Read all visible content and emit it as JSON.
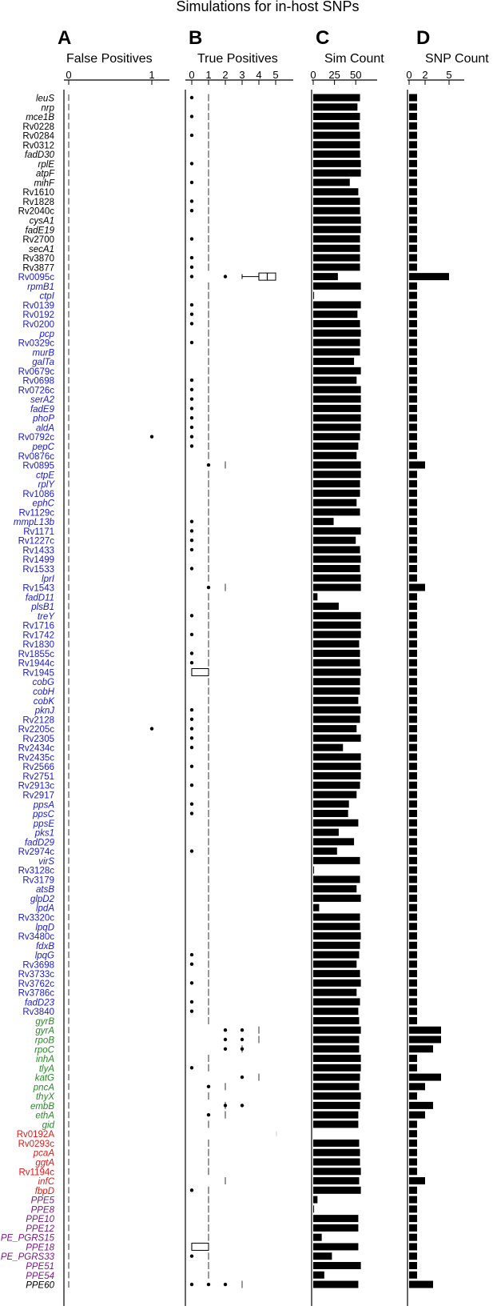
{
  "title": "Simulations for in-host SNPs",
  "panels": [
    {
      "letter": "A",
      "title": "False Positives"
    },
    {
      "letter": "B",
      "title": "True Positives"
    },
    {
      "letter": "C",
      "title": "Sim Count"
    },
    {
      "letter": "D",
      "title": "SNP Count"
    }
  ],
  "colors": {
    "black": "#000000",
    "blue": "#1a1acc",
    "green": "#2a8a2a",
    "red": "#dd1a1a",
    "purple": "#7a1a8a"
  },
  "chart_data": [
    {
      "type": "scatter",
      "title": "False Positives",
      "xticks": [
        "0",
        "1"
      ],
      "xlim": [
        0,
        1
      ],
      "dashed_reference_x": 0,
      "categories": [
        "leuS",
        "nrp",
        "mce1B",
        "Rv0228",
        "Rv0284",
        "Rv0312",
        "fadD30",
        "rplE",
        "atpF",
        "mihF",
        "Rv1610",
        "Rv1828",
        "Rv2040c",
        "cysA1",
        "fadE19",
        "Rv2700",
        "secA1",
        "Rv3870",
        "Rv3877",
        "Rv0095c",
        "rpmB1",
        "ctpI",
        "Rv0139",
        "Rv0192",
        "Rv0200",
        "pcp",
        "Rv0329c",
        "murB",
        "galTa",
        "Rv0679c",
        "Rv0698",
        "Rv0726c",
        "serA2",
        "fadE9",
        "phoP",
        "aldA",
        "Rv0792c",
        "pepC",
        "Rv0876c",
        "Rv0895",
        "ctpE",
        "rplY",
        "Rv1086",
        "ephC",
        "Rv1129c",
        "mmpL13b",
        "Rv1171",
        "Rv1227c",
        "Rv1433",
        "Rv1499",
        "Rv1533",
        "lprI",
        "Rv1543",
        "fadD11",
        "plsB1",
        "treY",
        "Rv1716",
        "Rv1742",
        "Rv1830",
        "Rv1855c",
        "Rv1944c",
        "Rv1945",
        "cobG",
        "cobH",
        "cobK",
        "pknJ",
        "Rv2128",
        "Rv2205c",
        "Rv2305",
        "Rv2434c",
        "Rv2435c",
        "Rv2566",
        "Rv2751",
        "Rv2913c",
        "Rv2917",
        "ppsA",
        "ppsC",
        "ppsE",
        "pks1",
        "fadD29",
        "Rv2974c",
        "virS",
        "Rv3128c",
        "Rv3179",
        "atsB",
        "glpD2",
        "lpdA",
        "Rv3320c",
        "lpqD",
        "Rv3480c",
        "fdxB",
        "lpqG",
        "Rv3698",
        "Rv3733c",
        "Rv3762c",
        "Rv3786c",
        "fadD23",
        "Rv3840",
        "gyrB",
        "gyrA",
        "rpoB",
        "rpoC",
        "inhA",
        "tlyA",
        "katG",
        "pncA",
        "thyX",
        "embB",
        "ethA",
        "gid",
        "Rv0192A",
        "Rv0293c",
        "pcaA",
        "ggtA",
        "Rv1194c",
        "infC",
        "fbpD",
        "PPE5",
        "PPE8",
        "PPE10",
        "PPE12",
        "PE_PGRS15",
        "PPE18",
        "PE_PGRS33",
        "PPE51",
        "PPE54",
        "PPE60"
      ],
      "category_groups": {
        "black": [
          0,
          18
        ],
        "blue": [
          19,
          97
        ],
        "green": [
          98,
          109
        ],
        "red": [
          110,
          116
        ],
        "purple": [
          117,
          125
        ]
      },
      "italic_labels": [
        "leuS",
        "nrp",
        "mce1B",
        "fadD30",
        "rplE",
        "atpF",
        "mihF",
        "cysA1",
        "fadE19",
        "secA1",
        "rpmB1",
        "ctpI",
        "pcp",
        "murB",
        "galTa",
        "serA2",
        "fadE9",
        "phoP",
        "aldA",
        "pepC",
        "ctpE",
        "rplY",
        "ephC",
        "mmpL13b",
        "lprI",
        "fadD11",
        "plsB1",
        "treY",
        "cobG",
        "cobH",
        "cobK",
        "pknJ",
        "ppsA",
        "ppsC",
        "ppsE",
        "pks1",
        "fadD29",
        "virS",
        "atsB",
        "glpD2",
        "lpdA",
        "lpqD",
        "fdxB",
        "lpqG",
        "fadD23",
        "gyrB",
        "gyrA",
        "rpoB",
        "rpoC",
        "inhA",
        "tlyA",
        "katG",
        "pncA",
        "thyX",
        "embB",
        "ethA",
        "gid",
        "pcaA",
        "ggtA",
        "infC",
        "fbpD",
        "PPE5",
        "PPE8",
        "PPE10",
        "PPE12",
        "PE_PGRS15",
        "PPE18",
        "PE_PGRS33",
        "PPE51",
        "PPE54",
        "PPE60"
      ],
      "outlier_points": [
        {
          "category": "Rv0792c",
          "value": 1
        },
        {
          "category": "Rv2205c",
          "value": 1
        }
      ]
    },
    {
      "type": "scatter",
      "title": "True Positives",
      "xticks": [
        "0",
        "1",
        "2",
        "3",
        "4",
        "5"
      ],
      "xlim": [
        0,
        5
      ],
      "median_marks": [
        1,
        1,
        1,
        1,
        1,
        1,
        1,
        1,
        1,
        1,
        1,
        1,
        1,
        1,
        1,
        1,
        1,
        1,
        1,
        4,
        1,
        1,
        1,
        1,
        1,
        1,
        1,
        1,
        1,
        1,
        1,
        1,
        1,
        1,
        1,
        1,
        1,
        1,
        1,
        2,
        1,
        1,
        1,
        1,
        1,
        1,
        1,
        1,
        1,
        1,
        1,
        1,
        2,
        1,
        1,
        1,
        1,
        1,
        1,
        1,
        1,
        0,
        1,
        1,
        1,
        1,
        1,
        1,
        1,
        1,
        1,
        1,
        1,
        1,
        1,
        1,
        1,
        1,
        1,
        1,
        1,
        1,
        1,
        1,
        1,
        1,
        1,
        1,
        1,
        1,
        1,
        1,
        1,
        1,
        1,
        1,
        1,
        1,
        1,
        4,
        4,
        3,
        1,
        1,
        4,
        2,
        1,
        2,
        2,
        1,
        null,
        1,
        1,
        1,
        1,
        2,
        1,
        1,
        1,
        1,
        1,
        1,
        0,
        1,
        1,
        1,
        3
      ],
      "zero_dots": [
        "leuS",
        "mce1B",
        "Rv0284",
        "rplE",
        "mihF",
        "Rv1828",
        "Rv2040c",
        "Rv2700",
        "Rv3870",
        "Rv3877",
        "Rv0095c",
        "Rv0139",
        "Rv0192",
        "Rv0200",
        "Rv0329c",
        "Rv0698",
        "Rv0726c",
        "serA2",
        "fadE9",
        "phoP",
        "aldA",
        "Rv0792c",
        "pepC",
        "mmpL13b",
        "Rv1171",
        "Rv1227c",
        "Rv1433",
        "Rv1533",
        "treY",
        "Rv1742",
        "Rv1855c",
        "Rv1944c",
        "pknJ",
        "Rv2128",
        "Rv2205c",
        "Rv2305",
        "Rv2434c",
        "Rv2566",
        "Rv2913c",
        "ppsA",
        "ppsC",
        "Rv2974c",
        "lpqG",
        "Rv3698",
        "Rv3762c",
        "fadD23",
        "Rv3840",
        "tlyA",
        "fbpD",
        "PE_PGRS33",
        "PPE60"
      ],
      "extra_points": [
        {
          "category": "Rv0095c",
          "value": 2
        },
        {
          "category": "Rv0895",
          "value": 1
        },
        {
          "category": "Rv1543",
          "value": 1
        },
        {
          "category": "gyrA",
          "value": 2
        },
        {
          "category": "gyrA",
          "value": 3
        },
        {
          "category": "rpoB",
          "value": 2
        },
        {
          "category": "rpoB",
          "value": 3
        },
        {
          "category": "rpoC",
          "value": 2
        },
        {
          "category": "rpoC",
          "value": 3
        },
        {
          "category": "katG",
          "value": 3
        },
        {
          "category": "pncA",
          "value": 1
        },
        {
          "category": "embB",
          "value": 2
        },
        {
          "category": "embB",
          "value": 3
        },
        {
          "category": "ethA",
          "value": 1
        },
        {
          "category": "PPE60",
          "value": 1
        },
        {
          "category": "PPE60",
          "value": 2
        }
      ],
      "boxes": [
        {
          "category": "Rv0095c",
          "q1": 4,
          "median": 4.5,
          "q3": 5,
          "whisker_low": 3,
          "whisker_high": 5
        },
        {
          "category": "Rv1945",
          "q1": 0,
          "median": 0,
          "q3": 1,
          "whisker_low": 0,
          "whisker_high": 1
        },
        {
          "category": "PPE18",
          "q1": 0,
          "median": 0,
          "q3": 1,
          "whisker_low": 0,
          "whisker_high": 1
        }
      ]
    },
    {
      "type": "bar",
      "title": "Sim Count",
      "xticks": [
        "0",
        "25",
        "50"
      ],
      "xlim": [
        0,
        62
      ],
      "values": [
        55,
        52,
        55,
        54,
        55,
        55,
        55,
        56,
        56,
        43,
        53,
        55,
        55,
        56,
        56,
        55,
        55,
        55,
        55,
        29,
        56,
        1,
        56,
        52,
        55,
        56,
        55,
        55,
        48,
        56,
        51,
        56,
        56,
        56,
        56,
        56,
        55,
        53,
        51,
        56,
        56,
        55,
        55,
        51,
        55,
        24,
        56,
        50,
        55,
        56,
        55,
        56,
        56,
        5,
        30,
        56,
        56,
        56,
        54,
        55,
        55,
        56,
        55,
        55,
        53,
        56,
        55,
        51,
        56,
        35,
        56,
        56,
        56,
        55,
        51,
        42,
        41,
        53,
        30,
        48,
        28,
        55,
        1,
        55,
        51,
        56,
        7,
        55,
        55,
        56,
        55,
        54,
        51,
        55,
        56,
        51,
        55,
        53,
        54,
        56,
        54,
        54,
        56,
        56,
        55,
        54,
        56,
        55,
        53,
        53,
        null,
        54,
        55,
        55,
        56,
        54,
        56,
        5,
        1,
        53,
        53,
        10,
        53,
        22,
        56,
        13,
        53
      ]
    },
    {
      "type": "bar",
      "title": "SNP Count",
      "xticks": [
        "0",
        "2",
        "5"
      ],
      "xlim": [
        0,
        6
      ],
      "values": [
        1,
        1,
        1,
        1,
        1,
        1,
        1,
        1,
        1,
        1,
        1,
        1,
        1,
        1,
        1,
        1,
        1,
        1,
        1,
        5,
        1,
        1,
        1,
        1,
        1,
        1,
        1,
        1,
        1,
        1,
        1,
        1,
        1,
        1,
        1,
        1,
        1,
        1,
        1,
        2,
        1,
        1,
        1,
        1,
        1,
        1,
        1,
        1,
        1,
        1,
        1,
        1,
        2,
        1,
        1,
        1,
        1,
        1,
        1,
        1,
        1,
        1,
        1,
        1,
        1,
        1,
        1,
        1,
        1,
        1,
        1,
        1,
        1,
        1,
        1,
        1,
        1,
        1,
        1,
        1,
        1,
        1,
        1,
        1,
        1,
        1,
        1,
        1,
        1,
        1,
        1,
        1,
        1,
        1,
        1,
        1,
        1,
        1,
        1,
        4,
        4,
        3,
        1,
        1,
        4,
        2,
        1,
        3,
        2,
        1,
        1,
        1,
        1,
        1,
        1,
        2,
        1,
        1,
        1,
        1,
        1,
        1,
        1,
        1,
        1,
        1,
        3
      ]
    }
  ]
}
